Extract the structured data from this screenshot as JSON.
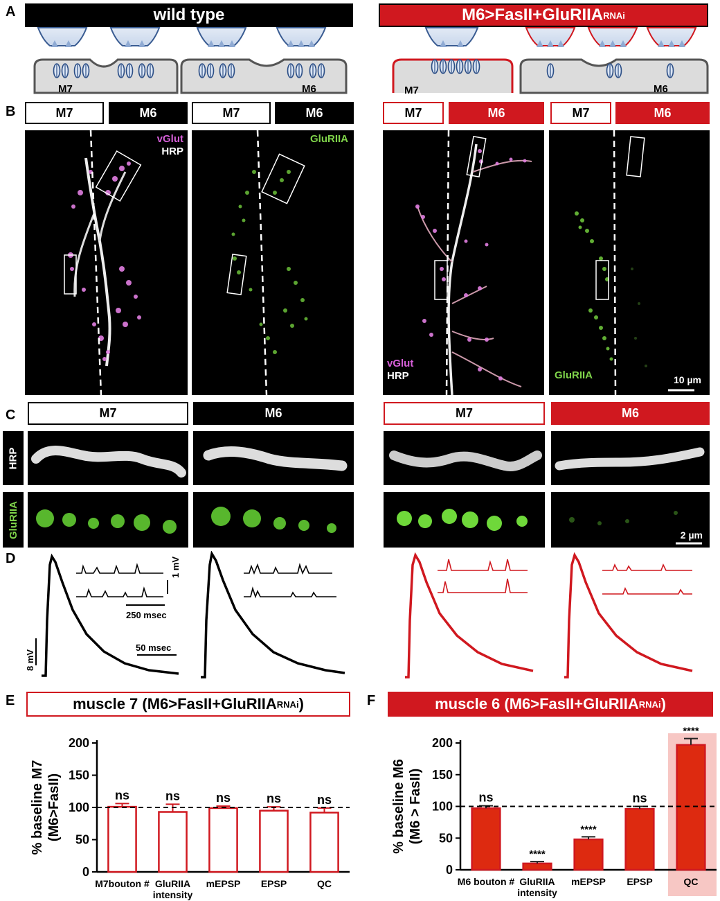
{
  "panels": {
    "A": "A",
    "B": "B",
    "C": "C",
    "D": "D",
    "E": "E",
    "F": "F"
  },
  "banner_wt": "wild type",
  "banner_mut": {
    "main": "M6>FasII+GluRIIA",
    "sup": "RNAi"
  },
  "schematic": {
    "wt_m7": "M7",
    "wt_m6": "M6",
    "mut_m7": "M7",
    "mut_m6": "M6"
  },
  "headers_b": [
    "M7",
    "M6",
    "M7",
    "M6",
    "M7",
    "M6",
    "M7",
    "M6"
  ],
  "micrographs_b": {
    "p1": {
      "stain1": "vGlut",
      "stain2": "HRP"
    },
    "p2": {
      "stain1": "GluRIIA"
    },
    "p3": {
      "stain1": "vGlut",
      "stain2": "HRP"
    },
    "p4": {
      "stain1": "GluRIIA"
    },
    "scale": "10 µm"
  },
  "headers_c": [
    "M7",
    "M6",
    "M7",
    "M6"
  ],
  "row_labels_c": {
    "hrp": "HRP",
    "glu": "GluRIIA"
  },
  "scale_c": "2 µm",
  "traces_d": {
    "v_scale_minis": "1 mV",
    "t_scale_minis": "250 msec",
    "v_scale_epsp": "8 mV",
    "t_scale_epsp": "50 msec"
  },
  "colors": {
    "red": "#d0181f",
    "bar_fill": "#dd2a10",
    "highlight": "#f7c7c4"
  },
  "chart_data": [
    {
      "type": "bar",
      "title": {
        "main": "muscle 7 (M6>FasII+GluRIIA",
        "sup": "RNAi",
        "end": ")"
      },
      "ylabel": [
        "% baseline M7",
        "(M6>FasII)"
      ],
      "ylim": [
        0,
        200
      ],
      "yticks": [
        0,
        50,
        100,
        150,
        200
      ],
      "baseline": 100,
      "categories": [
        [
          "M7bouton #"
        ],
        [
          "GluRIIA",
          "intensity"
        ],
        [
          "mEPSP"
        ],
        [
          "EPSP"
        ],
        [
          "QC"
        ]
      ],
      "values": [
        101,
        93,
        99,
        95,
        92
      ],
      "errors": [
        5,
        12,
        3,
        6,
        7
      ],
      "significance": [
        "ns",
        "ns",
        "ns",
        "ns",
        "ns"
      ],
      "bar_style": "open-red"
    },
    {
      "type": "bar",
      "title": {
        "main": "muscle 6 (M6>FasII+GluRIIA",
        "sup": "RNAi",
        "end": ")"
      },
      "ylabel": [
        "% baseline M6",
        "(M6 > FasII)"
      ],
      "ylim": [
        0,
        200
      ],
      "yticks": [
        0,
        50,
        100,
        150,
        200
      ],
      "baseline": 100,
      "categories": [
        [
          "M6 bouton #"
        ],
        [
          "GluRIIA",
          "intensity"
        ],
        [
          "mEPSP"
        ],
        [
          "EPSP"
        ],
        [
          "QC"
        ]
      ],
      "values": [
        97,
        10,
        48,
        96,
        197
      ],
      "errors": [
        4,
        3,
        4,
        4,
        10
      ],
      "significance": [
        "ns",
        "****",
        "****",
        "ns",
        "****"
      ],
      "bar_style": "filled-red",
      "highlight_category": 4
    }
  ]
}
